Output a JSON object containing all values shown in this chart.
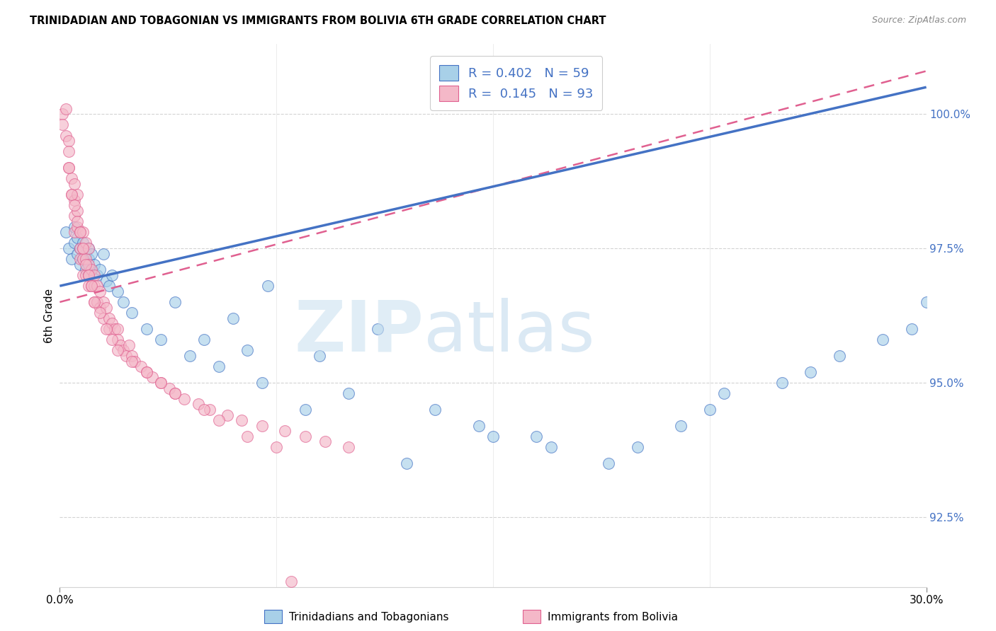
{
  "title": "TRINIDADIAN AND TOBAGONIAN VS IMMIGRANTS FROM BOLIVIA 6TH GRADE CORRELATION CHART",
  "source": "Source: ZipAtlas.com",
  "ylabel": "6th Grade",
  "xmin": 0.0,
  "xmax": 30.0,
  "ymin": 91.2,
  "ymax": 101.3,
  "legend1_label": "R = 0.402   N = 59",
  "legend2_label": "R =  0.145   N = 93",
  "legend1_color": "#a8d0e8",
  "legend2_color": "#f4b8c8",
  "trendline1_color": "#4472c4",
  "trendline2_color": "#e06090",
  "blue_trendline_x0": 0.0,
  "blue_trendline_y0": 96.8,
  "blue_trendline_x1": 30.0,
  "blue_trendline_y1": 100.5,
  "pink_trendline_x0": 0.0,
  "pink_trendline_y0": 96.5,
  "pink_trendline_x1": 30.0,
  "pink_trendline_y1": 100.8,
  "blue_x": [
    0.2,
    0.3,
    0.4,
    0.5,
    0.5,
    0.6,
    0.6,
    0.7,
    0.7,
    0.8,
    0.8,
    0.9,
    0.9,
    1.0,
    1.0,
    1.0,
    1.1,
    1.1,
    1.2,
    1.3,
    1.4,
    1.5,
    1.6,
    1.7,
    1.8,
    2.0,
    2.2,
    2.5,
    3.0,
    3.5,
    4.0,
    4.5,
    5.0,
    5.5,
    6.0,
    6.5,
    7.0,
    7.2,
    8.5,
    9.0,
    10.0,
    11.0,
    12.0,
    13.0,
    15.0,
    17.0,
    19.0,
    21.5,
    23.0,
    25.0,
    27.0,
    28.5,
    29.5,
    30.0,
    14.5,
    16.5,
    20.0,
    22.5,
    26.0
  ],
  "blue_y": [
    97.8,
    97.5,
    97.3,
    97.9,
    97.6,
    97.4,
    97.7,
    97.5,
    97.2,
    97.3,
    97.6,
    97.1,
    97.4,
    97.0,
    97.3,
    97.5,
    97.1,
    97.4,
    97.2,
    97.0,
    97.1,
    97.4,
    96.9,
    96.8,
    97.0,
    96.7,
    96.5,
    96.3,
    96.0,
    95.8,
    96.5,
    95.5,
    95.8,
    95.3,
    96.2,
    95.6,
    95.0,
    96.8,
    94.5,
    95.5,
    94.8,
    96.0,
    93.5,
    94.5,
    94.0,
    93.8,
    93.5,
    94.2,
    94.8,
    95.0,
    95.5,
    95.8,
    96.0,
    96.5,
    94.2,
    94.0,
    93.8,
    94.5,
    95.2
  ],
  "pink_x": [
    0.1,
    0.1,
    0.2,
    0.2,
    0.3,
    0.3,
    0.3,
    0.4,
    0.4,
    0.5,
    0.5,
    0.5,
    0.5,
    0.6,
    0.6,
    0.6,
    0.7,
    0.7,
    0.7,
    0.8,
    0.8,
    0.8,
    0.8,
    0.9,
    0.9,
    0.9,
    1.0,
    1.0,
    1.0,
    1.0,
    1.1,
    1.1,
    1.2,
    1.2,
    1.2,
    1.3,
    1.3,
    1.4,
    1.4,
    1.5,
    1.5,
    1.6,
    1.7,
    1.7,
    1.8,
    1.9,
    2.0,
    2.0,
    2.1,
    2.2,
    2.3,
    2.4,
    2.5,
    2.6,
    2.8,
    3.0,
    3.2,
    3.5,
    3.8,
    4.0,
    4.3,
    4.8,
    5.2,
    5.8,
    6.3,
    7.0,
    7.8,
    8.5,
    9.2,
    10.0,
    0.3,
    0.4,
    0.5,
    0.6,
    0.7,
    0.8,
    0.9,
    1.0,
    1.1,
    1.2,
    1.4,
    1.6,
    1.8,
    2.0,
    2.5,
    3.0,
    3.5,
    4.0,
    5.0,
    5.5,
    6.5,
    7.5,
    8.0
  ],
  "pink_y": [
    100.0,
    99.8,
    100.1,
    99.6,
    99.5,
    99.3,
    99.0,
    98.8,
    98.5,
    98.7,
    98.4,
    98.1,
    97.8,
    98.5,
    98.2,
    97.9,
    97.8,
    97.5,
    97.3,
    97.8,
    97.5,
    97.3,
    97.0,
    97.6,
    97.3,
    97.0,
    97.5,
    97.2,
    97.0,
    96.8,
    97.1,
    96.8,
    97.0,
    96.8,
    96.5,
    96.8,
    96.5,
    96.7,
    96.4,
    96.5,
    96.2,
    96.4,
    96.2,
    96.0,
    96.1,
    96.0,
    96.0,
    95.8,
    95.7,
    95.6,
    95.5,
    95.7,
    95.5,
    95.4,
    95.3,
    95.2,
    95.1,
    95.0,
    94.9,
    94.8,
    94.7,
    94.6,
    94.5,
    94.4,
    94.3,
    94.2,
    94.1,
    94.0,
    93.9,
    93.8,
    99.0,
    98.5,
    98.3,
    98.0,
    97.8,
    97.5,
    97.2,
    97.0,
    96.8,
    96.5,
    96.3,
    96.0,
    95.8,
    95.6,
    95.4,
    95.2,
    95.0,
    94.8,
    94.5,
    94.3,
    94.0,
    93.8,
    91.3
  ]
}
